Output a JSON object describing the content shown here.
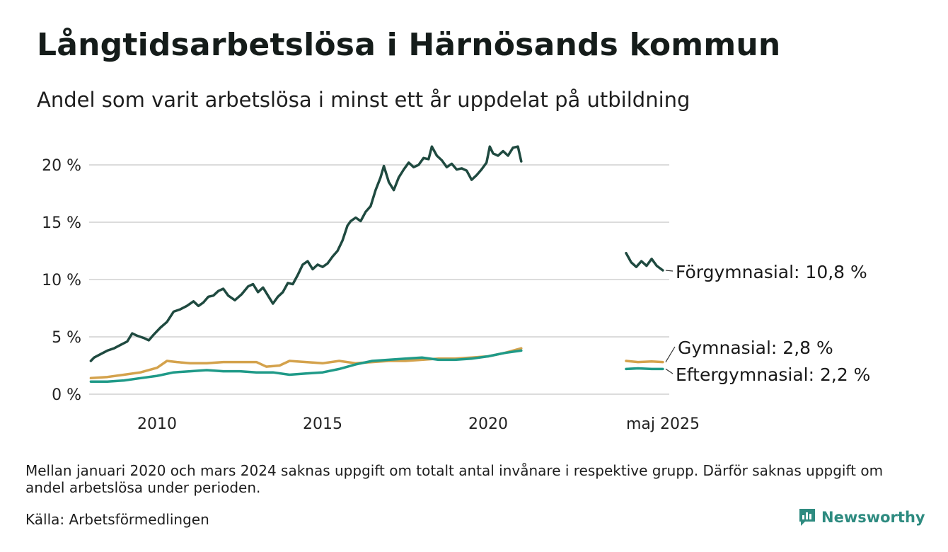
{
  "title": "Långtidsarbetslösa i Härnösands kommun",
  "subtitle": "Andel som varit arbetslösa i minst ett år uppdelat på utbildning",
  "note": "Mellan januari 2020 och mars 2024 saknas uppgift om totalt antal invånare i respektive grupp. Därför saknas uppgift om andel arbetslösa under perioden.",
  "source": "Källa: Arbetsförmedlingen",
  "brand": "Newsworthy",
  "chart_data": {
    "type": "line",
    "title": "Långtidsarbetslösa i Härnösands kommun",
    "subtitle": "Andel som varit arbetslösa i minst ett år uppdelat på utbildning",
    "xlabel": "",
    "ylabel": "",
    "ylim": [
      0,
      22
    ],
    "y_ticks": [
      0,
      5,
      10,
      15,
      20
    ],
    "y_tick_labels": [
      "0 %",
      "5 %",
      "10 %",
      "15 %",
      "20 %"
    ],
    "x_ticks": [
      2010,
      2015,
      2020,
      2025.33
    ],
    "x_tick_labels": [
      "2010",
      "2015",
      "2020",
      "maj 2025"
    ],
    "grid": true,
    "legend": "end-labels",
    "series": [
      {
        "name": "Förgymnasial",
        "end_label": "Förgymnasial: 10,8 %",
        "color": "#1f4a40",
        "segments": [
          [
            [
              2008.0,
              2.9
            ],
            [
              2008.1,
              3.2
            ],
            [
              2008.3,
              3.5
            ],
            [
              2008.5,
              3.8
            ],
            [
              2008.7,
              4.0
            ],
            [
              2008.9,
              4.3
            ],
            [
              2009.1,
              4.6
            ],
            [
              2009.25,
              5.3
            ],
            [
              2009.4,
              5.1
            ],
            [
              2009.6,
              4.9
            ],
            [
              2009.75,
              4.7
            ],
            [
              2009.9,
              5.2
            ],
            [
              2010.1,
              5.8
            ],
            [
              2010.3,
              6.3
            ],
            [
              2010.5,
              7.2
            ],
            [
              2010.7,
              7.4
            ],
            [
              2010.9,
              7.7
            ],
            [
              2011.1,
              8.1
            ],
            [
              2011.25,
              7.7
            ],
            [
              2011.4,
              8.0
            ],
            [
              2011.55,
              8.5
            ],
            [
              2011.7,
              8.6
            ],
            [
              2011.85,
              9.0
            ],
            [
              2012.0,
              9.2
            ],
            [
              2012.15,
              8.6
            ],
            [
              2012.35,
              8.2
            ],
            [
              2012.55,
              8.7
            ],
            [
              2012.75,
              9.4
            ],
            [
              2012.9,
              9.6
            ],
            [
              2013.05,
              8.9
            ],
            [
              2013.2,
              9.3
            ],
            [
              2013.35,
              8.6
            ],
            [
              2013.5,
              7.9
            ],
            [
              2013.65,
              8.5
            ],
            [
              2013.8,
              8.9
            ],
            [
              2013.95,
              9.7
            ],
            [
              2014.1,
              9.6
            ],
            [
              2014.25,
              10.4
            ],
            [
              2014.4,
              11.3
            ],
            [
              2014.55,
              11.6
            ],
            [
              2014.7,
              10.9
            ],
            [
              2014.85,
              11.3
            ],
            [
              2015.0,
              11.1
            ],
            [
              2015.15,
              11.4
            ],
            [
              2015.3,
              12.0
            ],
            [
              2015.45,
              12.5
            ],
            [
              2015.6,
              13.4
            ],
            [
              2015.75,
              14.7
            ],
            [
              2015.85,
              15.1
            ],
            [
              2016.0,
              15.4
            ],
            [
              2016.15,
              15.1
            ],
            [
              2016.3,
              15.9
            ],
            [
              2016.45,
              16.4
            ],
            [
              2016.6,
              17.8
            ],
            [
              2016.75,
              18.9
            ],
            [
              2016.85,
              19.9
            ],
            [
              2017.0,
              18.5
            ],
            [
              2017.15,
              17.8
            ],
            [
              2017.3,
              18.9
            ],
            [
              2017.45,
              19.6
            ],
            [
              2017.6,
              20.2
            ],
            [
              2017.75,
              19.8
            ],
            [
              2017.9,
              20.0
            ],
            [
              2018.05,
              20.6
            ],
            [
              2018.2,
              20.5
            ],
            [
              2018.3,
              21.6
            ],
            [
              2018.45,
              20.8
            ],
            [
              2018.6,
              20.4
            ],
            [
              2018.75,
              19.8
            ],
            [
              2018.9,
              20.1
            ],
            [
              2019.05,
              19.6
            ],
            [
              2019.2,
              19.7
            ],
            [
              2019.35,
              19.5
            ],
            [
              2019.5,
              18.7
            ],
            [
              2019.65,
              19.1
            ],
            [
              2019.8,
              19.6
            ],
            [
              2019.95,
              20.2
            ],
            [
              2020.05,
              21.6
            ],
            [
              2020.15,
              21.0
            ],
            [
              2020.3,
              20.8
            ],
            [
              2020.45,
              21.2
            ],
            [
              2020.6,
              20.8
            ],
            [
              2020.75,
              21.5
            ],
            [
              2020.9,
              21.6
            ],
            [
              2021.0,
              20.3
            ]
          ],
          [
            [
              2024.25,
              12.3
            ],
            [
              2024.4,
              11.5
            ],
            [
              2024.55,
              11.1
            ],
            [
              2024.7,
              11.6
            ],
            [
              2024.85,
              11.2
            ],
            [
              2025.0,
              11.8
            ],
            [
              2025.15,
              11.2
            ],
            [
              2025.33,
              10.8
            ]
          ]
        ]
      },
      {
        "name": "Gymnasial",
        "end_label": "Gymnasial:  2,8 %",
        "color": "#d4a24c",
        "segments": [
          [
            [
              2008.0,
              1.4
            ],
            [
              2008.5,
              1.5
            ],
            [
              2009.0,
              1.7
            ],
            [
              2009.5,
              1.9
            ],
            [
              2010.0,
              2.3
            ],
            [
              2010.3,
              2.9
            ],
            [
              2010.6,
              2.8
            ],
            [
              2011.0,
              2.7
            ],
            [
              2011.5,
              2.7
            ],
            [
              2012.0,
              2.8
            ],
            [
              2012.5,
              2.8
            ],
            [
              2013.0,
              2.8
            ],
            [
              2013.3,
              2.4
            ],
            [
              2013.7,
              2.5
            ],
            [
              2014.0,
              2.9
            ],
            [
              2014.5,
              2.8
            ],
            [
              2015.0,
              2.7
            ],
            [
              2015.5,
              2.9
            ],
            [
              2016.0,
              2.7
            ],
            [
              2016.5,
              2.8
            ],
            [
              2017.0,
              2.9
            ],
            [
              2017.5,
              2.9
            ],
            [
              2018.0,
              3.0
            ],
            [
              2018.5,
              3.1
            ],
            [
              2019.0,
              3.1
            ],
            [
              2019.5,
              3.2
            ],
            [
              2020.0,
              3.3
            ],
            [
              2020.5,
              3.6
            ],
            [
              2021.0,
              4.0
            ]
          ],
          [
            [
              2024.25,
              2.9
            ],
            [
              2024.6,
              2.8
            ],
            [
              2025.0,
              2.85
            ],
            [
              2025.33,
              2.8
            ]
          ]
        ]
      },
      {
        "name": "Eftergymnasial",
        "end_label": "Eftergymnasial:  2,2 %",
        "color": "#1f9a88",
        "segments": [
          [
            [
              2008.0,
              1.1
            ],
            [
              2008.5,
              1.1
            ],
            [
              2009.0,
              1.2
            ],
            [
              2009.5,
              1.4
            ],
            [
              2010.0,
              1.6
            ],
            [
              2010.5,
              1.9
            ],
            [
              2011.0,
              2.0
            ],
            [
              2011.5,
              2.1
            ],
            [
              2012.0,
              2.0
            ],
            [
              2012.5,
              2.0
            ],
            [
              2013.0,
              1.9
            ],
            [
              2013.5,
              1.9
            ],
            [
              2014.0,
              1.7
            ],
            [
              2014.5,
              1.8
            ],
            [
              2015.0,
              1.9
            ],
            [
              2015.5,
              2.2
            ],
            [
              2016.0,
              2.6
            ],
            [
              2016.5,
              2.9
            ],
            [
              2017.0,
              3.0
            ],
            [
              2017.5,
              3.1
            ],
            [
              2018.0,
              3.2
            ],
            [
              2018.5,
              3.0
            ],
            [
              2019.0,
              3.0
            ],
            [
              2019.5,
              3.1
            ],
            [
              2020.0,
              3.3
            ],
            [
              2020.5,
              3.6
            ],
            [
              2021.0,
              3.8
            ]
          ],
          [
            [
              2024.25,
              2.2
            ],
            [
              2024.6,
              2.25
            ],
            [
              2025.0,
              2.2
            ],
            [
              2025.33,
              2.2
            ]
          ]
        ]
      }
    ]
  }
}
